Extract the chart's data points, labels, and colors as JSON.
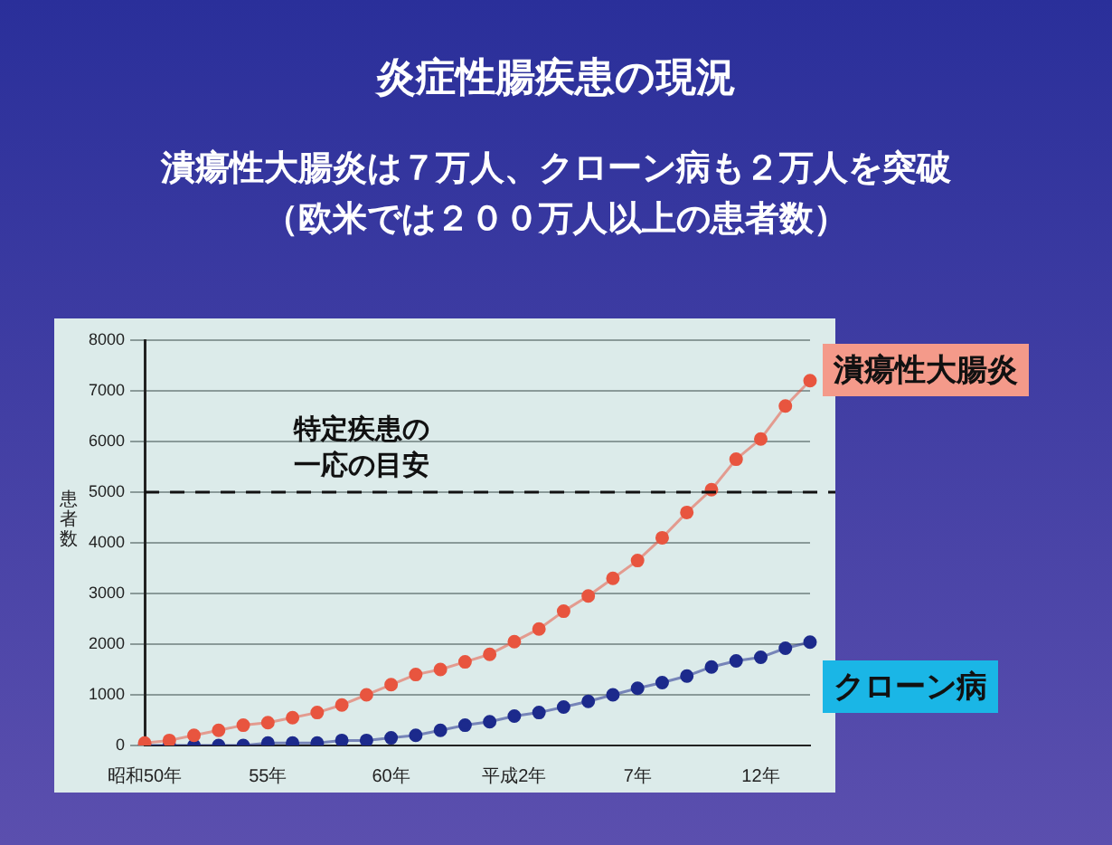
{
  "chart_data": {
    "type": "line",
    "title": "炎症性腸疾患の現況",
    "subtitle": "潰瘍性大腸炎は７万人、クローン病も２万人を突破",
    "annotations": [
      "（欧米では２００万人以上の患者数）"
    ],
    "ylabel": "患者数",
    "categories": [
      "昭和50年",
      null,
      null,
      null,
      null,
      "55年",
      null,
      null,
      null,
      null,
      "60年",
      null,
      null,
      null,
      null,
      "平成2年",
      null,
      null,
      null,
      null,
      "7年",
      null,
      null,
      null,
      null,
      "12年",
      null,
      null
    ],
    "series": [
      {
        "name": "潰瘍性大腸炎",
        "color": "#e8553f",
        "values": [
          50,
          100,
          200,
          300,
          400,
          450,
          550,
          650,
          800,
          1000,
          1200,
          1400,
          1500,
          1650,
          1800,
          2050,
          2300,
          2650,
          2950,
          3300,
          3650,
          4100,
          4600,
          5050,
          5650,
          6050,
          6700,
          7200
        ]
      },
      {
        "name": "クローン病",
        "color": "#1c2a8c",
        "values": [
          0,
          0,
          0,
          0,
          0,
          50,
          50,
          50,
          100,
          100,
          150,
          200,
          300,
          400,
          470,
          580,
          650,
          760,
          870,
          1000,
          1130,
          1240,
          1370,
          1550,
          1670,
          1740,
          1920,
          2040
        ]
      }
    ],
    "ylim": [
      0,
      8000
    ],
    "yticks": [
      0,
      1000,
      2000,
      3000,
      4000,
      5000,
      6000,
      7000,
      8000
    ],
    "grid": "y",
    "marker": "circle",
    "line_style": "solid",
    "legend": false,
    "ref_lines": [
      {
        "axis": "y",
        "value": 5000,
        "label": "特定疾患の一応の目安",
        "line_style": "dashed",
        "color": "#111111"
      }
    ]
  }
}
